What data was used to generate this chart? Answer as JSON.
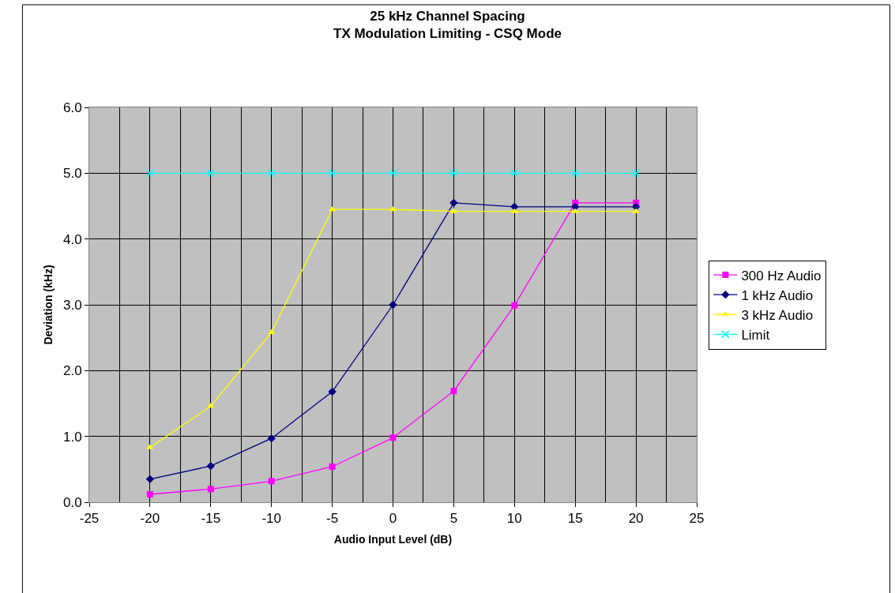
{
  "chart_data": {
    "type": "line",
    "title": "25 kHz Channel Spacing\nTX Modulation Limiting - CSQ Mode",
    "xlabel": "Audio Input Level (dB)",
    "ylabel": "Deviation (kHz)",
    "x": [
      -20,
      -15,
      -10,
      -5,
      0,
      5,
      10,
      15,
      20
    ],
    "series": [
      {
        "name": "300 Hz Audio",
        "color": "#ff00ff",
        "marker": "square",
        "values": [
          0.12,
          0.2,
          0.32,
          0.54,
          0.98,
          1.69,
          2.99,
          4.55,
          4.55
        ]
      },
      {
        "name": "1 kHz Audio",
        "color": "#000080",
        "marker": "diamond",
        "values": [
          0.35,
          0.55,
          0.97,
          1.68,
          3.0,
          4.55,
          4.49,
          4.49,
          4.49
        ]
      },
      {
        "name": "3 kHz Audio",
        "color": "#ffff00",
        "marker": "triangle",
        "values": [
          0.83,
          1.46,
          2.58,
          4.45,
          4.45,
          4.42,
          4.42,
          4.42,
          4.42
        ]
      },
      {
        "name": "Limit",
        "color": "#00ffff",
        "marker": "cross",
        "values": [
          5.0,
          5.0,
          5.0,
          5.0,
          5.0,
          5.0,
          5.0,
          5.0,
          5.0
        ]
      }
    ],
    "xlim": [
      -25,
      25
    ],
    "xticks": [
      -25,
      -20,
      -15,
      -10,
      -5,
      0,
      5,
      10,
      15,
      20,
      25
    ],
    "ylim": [
      0,
      6
    ],
    "yticks": [
      {
        "value": 0,
        "label": "0.0"
      },
      {
        "value": 1,
        "label": "1.0"
      },
      {
        "value": 2,
        "label": "2.0"
      },
      {
        "value": 3,
        "label": "3.0"
      },
      {
        "value": 4,
        "label": "4.0"
      },
      {
        "value": 5,
        "label": "5.0"
      },
      {
        "value": 6,
        "label": "6.0"
      }
    ],
    "grid": true,
    "legend": "right",
    "line_style": "solid"
  }
}
